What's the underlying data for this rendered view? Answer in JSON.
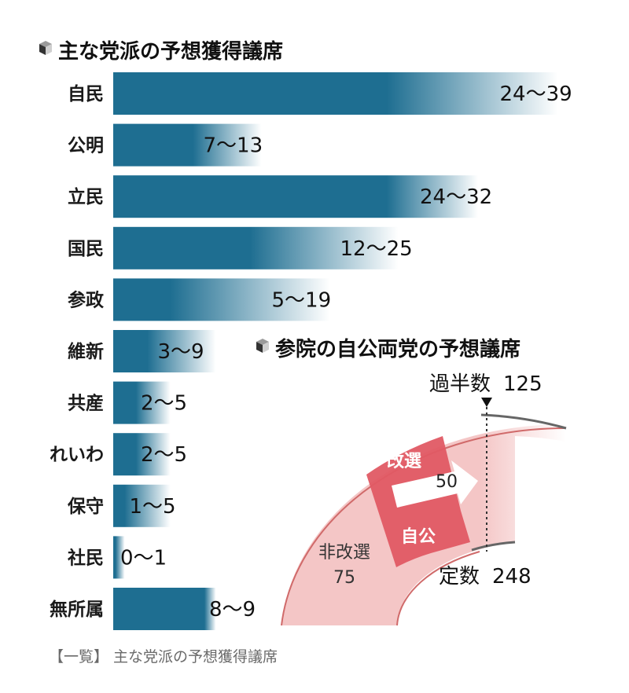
{
  "colors": {
    "bar": "#1e6e91",
    "arc_fill": "#f4c6c6",
    "arc_stroke": "#d06a6a",
    "wedge": "#e05a64",
    "dark_line": "#666666"
  },
  "chart_data": [
    {
      "type": "bar",
      "orientation": "horizontal",
      "title": "主な党派の予想獲得議席",
      "categories": [
        "自民",
        "公明",
        "立民",
        "国民",
        "参政",
        "維新",
        "共産",
        "れいわ",
        "保守",
        "社民",
        "無所属"
      ],
      "series": [
        {
          "values_min": [
            24,
            7,
            24,
            12,
            5,
            3,
            2,
            2,
            1,
            0,
            8
          ],
          "values_max": [
            39,
            13,
            32,
            25,
            19,
            9,
            5,
            5,
            5,
            1,
            9
          ]
        }
      ],
      "value_labels": [
        "24〜39",
        "7〜13",
        "24〜32",
        "12〜25",
        "5〜19",
        "3〜9",
        "2〜5",
        "2〜5",
        "1〜5",
        "0〜1",
        "8〜9"
      ],
      "grid": false,
      "legend": false
    },
    {
      "type": "arc",
      "title": "参院の自公両党の予想議席",
      "majority_label": "過半数",
      "majority": 125,
      "total_label": "定数",
      "total": 248,
      "non_contested_label": "非改選",
      "non_contested": 75,
      "contested_label": "改選",
      "ruling_label": "自公",
      "arrow_value": 50
    }
  ],
  "caption": "【一覧】 主な党派の予想獲得議席",
  "icon": "cube-icon"
}
